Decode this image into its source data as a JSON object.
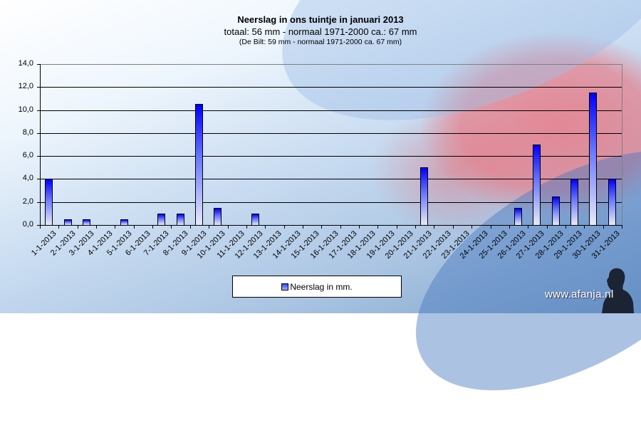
{
  "titles": {
    "main": "Neerslag in ons tuintje in januari 2013",
    "sub": "totaal: 56 mm  - normaal  1971-2000  ca.: 67 mm",
    "note": "(De Bilt: 59 mm - normaal  1971-2000 ca. 67 mm)"
  },
  "y_ticks": [
    "14,0",
    "12,0",
    "10,0",
    "8,0",
    "6,0",
    "4,0",
    "2,0",
    "0,0"
  ],
  "legend": {
    "label": "Neerslag in mm.",
    "swatch_icon": "bar-swatch-icon"
  },
  "watermark": "www.afanja.nl",
  "colors": {
    "bar_top": "#0000ff",
    "bar_bottom": "#e8eaf8",
    "gridline": "#000000"
  },
  "chart_data": {
    "type": "bar",
    "title": "Neerslag in ons tuintje in januari 2013",
    "subtitle": "totaal: 56 mm  - normaal  1971-2000  ca.: 67 mm; (De Bilt: 59 mm - normaal  1971-2000 ca. 67 mm)",
    "xlabel": "",
    "ylabel": "",
    "ylim": [
      0,
      14
    ],
    "y_tick_step": 2,
    "grid": true,
    "legend_position": "bottom",
    "categories": [
      "1-1-2013",
      "2-1-2013",
      "3-1-2013",
      "4-1-2013",
      "5-1-2013",
      "6-1-2013",
      "7-1-2013",
      "8-1-2013",
      "9-1-2013",
      "10-1-2013",
      "11-1-2013",
      "12-1-2013",
      "13-1-2013",
      "14-1-2013",
      "15-1-2013",
      "16-1-2013",
      "17-1-2013",
      "18-1-2013",
      "19-1-2013",
      "20-1-2013",
      "21-1-2013",
      "22-1-2013",
      "23-1-2013",
      "24-1-2013",
      "25-1-2013",
      "26-1-2013",
      "27-1-2013",
      "28-1-2013",
      "29-1-2013",
      "30-1-2013",
      "31-1-2013"
    ],
    "series": [
      {
        "name": "Neerslag in mm.",
        "values": [
          4.0,
          0.5,
          0.5,
          0,
          0.5,
          0,
          1.0,
          1.0,
          10.5,
          1.5,
          0,
          1.0,
          0,
          0,
          0,
          0,
          0,
          0,
          0,
          0,
          5.0,
          0,
          0,
          0,
          0,
          1.5,
          7.0,
          2.5,
          4.0,
          11.5,
          4.0
        ]
      }
    ]
  }
}
